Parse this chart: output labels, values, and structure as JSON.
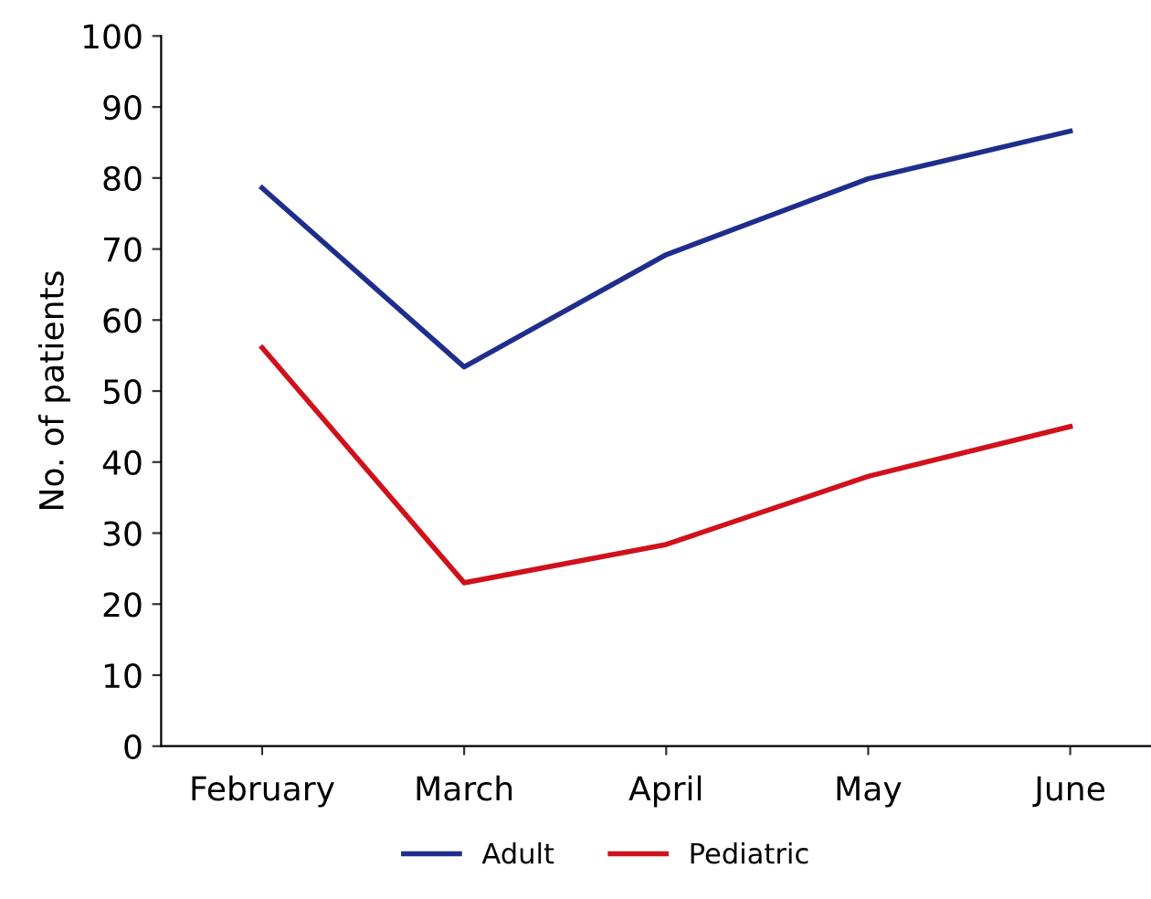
{
  "chart_data": {
    "type": "line",
    "ylabel": "No. of patients",
    "categories": [
      "February",
      "March",
      "April",
      "May",
      "June"
    ],
    "series": [
      {
        "name": "Adult",
        "color": "#1f2e8c",
        "values": [
          78.6,
          53.4,
          69.2,
          79.9,
          86.6
        ]
      },
      {
        "name": "Pediatric",
        "color": "#d0111b",
        "values": [
          56.1,
          23.0,
          28.4,
          38.0,
          45.0
        ]
      }
    ],
    "ylim": [
      0,
      100
    ],
    "yticks": [
      0,
      10,
      20,
      30,
      40,
      50,
      60,
      70,
      80,
      90,
      100
    ],
    "grid": false,
    "legend": "bottom",
    "marker": "none",
    "line_style": "solid"
  }
}
